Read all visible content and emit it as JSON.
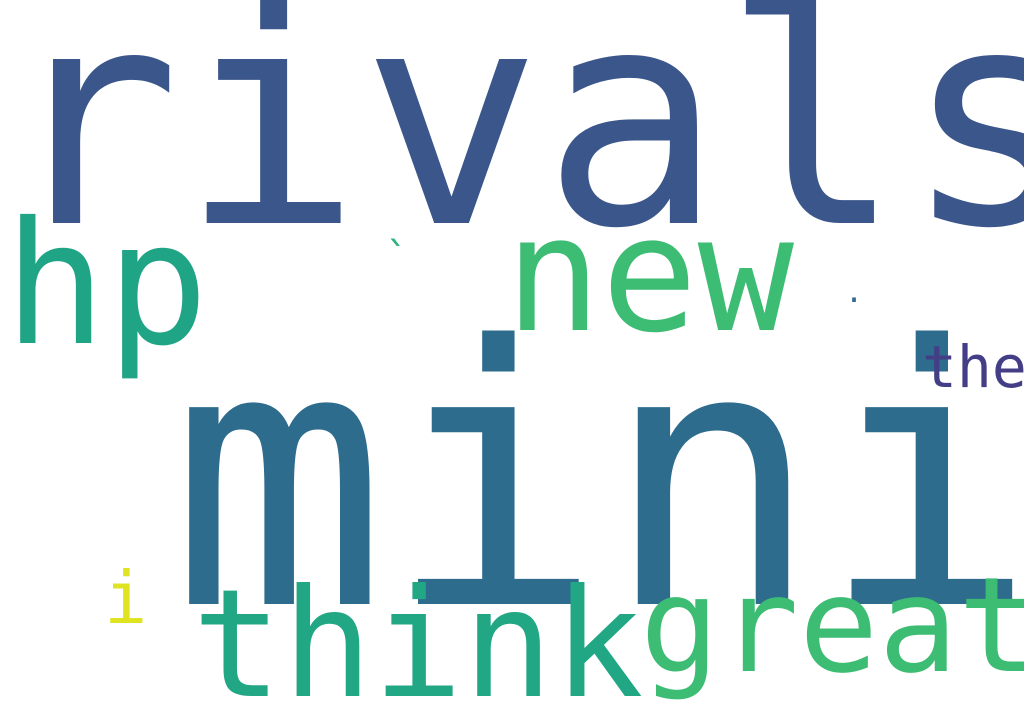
{
  "words": [
    {
      "id": "rivals",
      "text": "rivals",
      "color": "#3b568b"
    },
    {
      "id": "mini",
      "text": "mini",
      "color": "#2e6c8e"
    },
    {
      "id": "hp",
      "text": "hp",
      "color": "#20a486"
    },
    {
      "id": "new",
      "text": "new",
      "color": "#3dbc74"
    },
    {
      "id": "think",
      "text": "think",
      "color": "#22a785"
    },
    {
      "id": "great",
      "text": "great",
      "color": "#3dbc74"
    },
    {
      "id": "the",
      "text": "the",
      "color": "#433e85"
    },
    {
      "id": "i",
      "text": "i",
      "color": "#e0e321"
    },
    {
      "id": "tick",
      "text": "`",
      "color": "#2fb47c"
    },
    {
      "id": "dot",
      "text": ".",
      "color": "#31688e"
    }
  ]
}
